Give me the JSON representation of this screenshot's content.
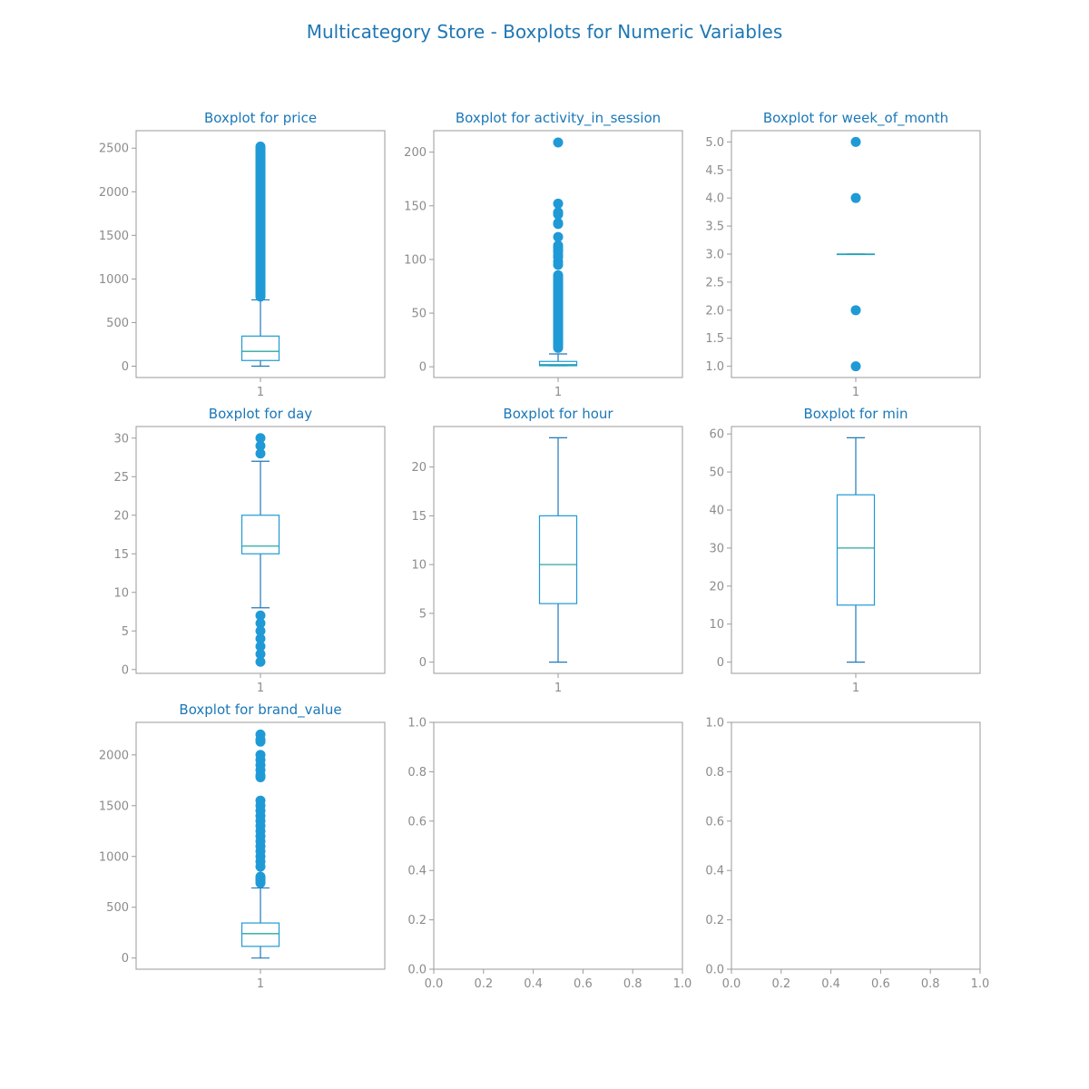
{
  "title": "Multicategory Store - Boxplots for Numeric Variables",
  "colors": {
    "title": "#1f77b4",
    "box": "#1f9ad6",
    "whisker": "#1f78b8",
    "median": "#2aa8a0",
    "flier": "#1f9ad6",
    "axis": "#9a9a9a",
    "tick_text": "#8c8c8c"
  },
  "chart_data": [
    {
      "type": "boxplot",
      "title": "Boxplot for price",
      "categories": [
        "1"
      ],
      "ylim": [
        -130,
        2700
      ],
      "yticks": [
        0,
        500,
        1000,
        1500,
        2000,
        2500
      ],
      "ytick_labels": [
        "0",
        "500",
        "1000",
        "1500",
        "2000",
        "2500"
      ],
      "q1": 65,
      "median": 170,
      "q3": 345,
      "whisker_low": 0,
      "whisker_high": 760,
      "outliers_dense": [
        740,
        2575
      ],
      "outliers": []
    },
    {
      "type": "boxplot",
      "title": "Boxplot for activity_in_session",
      "categories": [
        "1"
      ],
      "ylim": [
        -10,
        220
      ],
      "yticks": [
        0,
        50,
        100,
        150,
        200
      ],
      "ytick_labels": [
        "0",
        "50",
        "100",
        "150",
        "200"
      ],
      "q1": 1,
      "median": 2,
      "q3": 5,
      "whisker_low": 1,
      "whisker_high": 12,
      "outliers_dense": [
        13,
        90
      ],
      "outliers": [
        95,
        98,
        102,
        104,
        107,
        109,
        111,
        113,
        121,
        133,
        134,
        142,
        143,
        144,
        152,
        209
      ]
    },
    {
      "type": "boxplot",
      "title": "Boxplot for week_of_month",
      "categories": [
        "1"
      ],
      "ylim": [
        0.8,
        5.2
      ],
      "yticks": [
        1.0,
        1.5,
        2.0,
        2.5,
        3.0,
        3.5,
        4.0,
        4.5,
        5.0
      ],
      "ytick_labels": [
        "1.0",
        "1.5",
        "2.0",
        "2.5",
        "3.0",
        "3.5",
        "4.0",
        "4.5",
        "5.0"
      ],
      "q1": 3,
      "median": 3,
      "q3": 3,
      "whisker_low": 3,
      "whisker_high": 3,
      "outliers_dense": [],
      "outliers": [
        1,
        2,
        4,
        5
      ]
    },
    {
      "type": "boxplot",
      "title": "Boxplot for day",
      "categories": [
        "1"
      ],
      "ylim": [
        -0.5,
        31.5
      ],
      "yticks": [
        0,
        5,
        10,
        15,
        20,
        25,
        30
      ],
      "ytick_labels": [
        "0",
        "5",
        "10",
        "15",
        "20",
        "25",
        "30"
      ],
      "q1": 15,
      "median": 16,
      "q3": 20,
      "whisker_low": 8,
      "whisker_high": 27,
      "outliers_dense": [],
      "outliers": [
        1,
        2,
        3,
        4,
        5,
        6,
        7,
        28,
        29,
        30
      ]
    },
    {
      "type": "boxplot",
      "title": "Boxplot for hour",
      "categories": [
        "1"
      ],
      "ylim": [
        -1.15,
        24.15
      ],
      "yticks": [
        0,
        5,
        10,
        15,
        20
      ],
      "ytick_labels": [
        "0",
        "5",
        "10",
        "15",
        "20"
      ],
      "q1": 6,
      "median": 10,
      "q3": 15,
      "whisker_low": 0,
      "whisker_high": 23,
      "outliers_dense": [],
      "outliers": []
    },
    {
      "type": "boxplot",
      "title": "Boxplot for min",
      "categories": [
        "1"
      ],
      "ylim": [
        -2.95,
        61.95
      ],
      "yticks": [
        0,
        10,
        20,
        30,
        40,
        50,
        60
      ],
      "ytick_labels": [
        "0",
        "10",
        "20",
        "30",
        "40",
        "50",
        "60"
      ],
      "q1": 15,
      "median": 30,
      "q3": 44,
      "whisker_low": 0,
      "whisker_high": 59,
      "outliers_dense": [],
      "outliers": []
    },
    {
      "type": "boxplot",
      "title": "Boxplot for brand_value",
      "categories": [
        "1"
      ],
      "ylim": [
        -110,
        2320
      ],
      "yticks": [
        0,
        500,
        1000,
        1500,
        2000
      ],
      "ytick_labels": [
        "0",
        "500",
        "1000",
        "1500",
        "2000"
      ],
      "q1": 115,
      "median": 240,
      "q3": 345,
      "whisker_low": 0,
      "whisker_high": 690,
      "outliers_dense": [
        690,
        850
      ],
      "outliers": [
        900,
        950,
        1000,
        1050,
        1100,
        1150,
        1200,
        1250,
        1300,
        1350,
        1400,
        1450,
        1500,
        1550,
        1780,
        1800,
        1850,
        1900,
        1950,
        2000,
        2130,
        2150,
        2200
      ]
    },
    {
      "type": "empty",
      "title": "",
      "xlim": [
        0,
        1
      ],
      "ylim": [
        0,
        1
      ],
      "xticks": [
        0.0,
        0.2,
        0.4,
        0.6,
        0.8,
        1.0
      ],
      "xtick_labels": [
        "0.0",
        "0.2",
        "0.4",
        "0.6",
        "0.8",
        "1.0"
      ],
      "yticks": [
        0.0,
        0.2,
        0.4,
        0.6,
        0.8,
        1.0
      ],
      "ytick_labels": [
        "0.0",
        "0.2",
        "0.4",
        "0.6",
        "0.8",
        "1.0"
      ]
    },
    {
      "type": "empty",
      "title": "",
      "xlim": [
        0,
        1
      ],
      "ylim": [
        0,
        1
      ],
      "xticks": [
        0.0,
        0.2,
        0.4,
        0.6,
        0.8,
        1.0
      ],
      "xtick_labels": [
        "0.0",
        "0.2",
        "0.4",
        "0.6",
        "0.8",
        "1.0"
      ],
      "yticks": [
        0.0,
        0.2,
        0.4,
        0.6,
        0.8,
        1.0
      ],
      "ytick_labels": [
        "0.0",
        "0.2",
        "0.4",
        "0.6",
        "0.8",
        "1.0"
      ]
    }
  ]
}
